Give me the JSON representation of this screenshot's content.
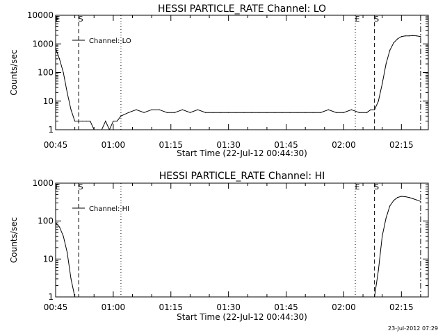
{
  "footer_stamp": "23-Jul-2012 07:29",
  "chart_data": [
    {
      "type": "line",
      "title": "HESSI PARTICLE_RATE Channel: LO",
      "xlabel": "Start Time (22-Jul-12 00:44:30)",
      "ylabel": "Counts/sec",
      "xlim": [
        "00:45",
        "02:22"
      ],
      "ylim": [
        1,
        10000
      ],
      "yscale": "log",
      "x_ticks": [
        "00:45",
        "01:00",
        "01:15",
        "01:30",
        "01:45",
        "02:00",
        "02:15"
      ],
      "y_ticks": [
        "1",
        "10",
        "100",
        "1000",
        "10000"
      ],
      "legend": {
        "label": "Channel: LO",
        "placement": "top-left"
      },
      "markers": [
        {
          "time": "00:45",
          "style": "dotted",
          "label": "E"
        },
        {
          "time": "00:51",
          "style": "dashed",
          "label": "S"
        },
        {
          "time": "01:02",
          "style": "dotted",
          "label": ""
        },
        {
          "time": "02:03",
          "style": "dotted",
          "label": "E"
        },
        {
          "time": "02:08",
          "style": "dashed",
          "label": "S"
        },
        {
          "time": "02:20",
          "style": "dashdot",
          "label": ""
        }
      ],
      "series": [
        {
          "name": "Channel: LO",
          "x": [
            "00:45",
            "00:46",
            "00:47",
            "00:48",
            "00:49",
            "00:50",
            "00:51",
            "00:52",
            "00:53",
            "00:54",
            "00:55",
            "00:56",
            "00:57",
            "00:58",
            "00:59",
            "01:00",
            "01:01",
            "01:02",
            "01:04",
            "01:06",
            "01:08",
            "01:10",
            "01:12",
            "01:14",
            "01:16",
            "01:18",
            "01:20",
            "01:22",
            "01:24",
            "01:26",
            "01:28",
            "01:30",
            "01:32",
            "01:34",
            "01:36",
            "01:38",
            "01:40",
            "01:42",
            "01:44",
            "01:46",
            "01:48",
            "01:50",
            "01:52",
            "01:54",
            "01:56",
            "01:58",
            "02:00",
            "02:02",
            "02:04",
            "02:06",
            "02:07",
            "02:08",
            "02:09",
            "02:10",
            "02:11",
            "02:12",
            "02:13",
            "02:14",
            "02:15",
            "02:16",
            "02:17",
            "02:18",
            "02:19",
            "02:20"
          ],
          "values": [
            700,
            300,
            100,
            20,
            5,
            2,
            2,
            2,
            2,
            2,
            1,
            1,
            1,
            2,
            1,
            2,
            2,
            3,
            4,
            5,
            4,
            5,
            5,
            4,
            4,
            5,
            4,
            5,
            4,
            4,
            4,
            4,
            4,
            4,
            4,
            4,
            4,
            4,
            4,
            4,
            4,
            4,
            4,
            4,
            5,
            4,
            4,
            5,
            4,
            4,
            5,
            5,
            10,
            40,
            200,
            600,
            1100,
            1500,
            1800,
            1900,
            1900,
            1950,
            1900,
            1800
          ]
        }
      ]
    },
    {
      "type": "line",
      "title": "HESSI PARTICLE_RATE Channel: HI",
      "xlabel": "Start Time (22-Jul-12 00:44:30)",
      "ylabel": "Counts/sec",
      "xlim": [
        "00:45",
        "02:22"
      ],
      "ylim": [
        1,
        1000
      ],
      "yscale": "log",
      "x_ticks": [
        "00:45",
        "01:00",
        "01:15",
        "01:30",
        "01:45",
        "02:00",
        "02:15"
      ],
      "y_ticks": [
        "1",
        "10",
        "100",
        "1000"
      ],
      "legend": {
        "label": "Channel: HI",
        "placement": "top-left"
      },
      "markers": [
        {
          "time": "00:45",
          "style": "dotted",
          "label": "E"
        },
        {
          "time": "00:51",
          "style": "dashed",
          "label": "S"
        },
        {
          "time": "01:02",
          "style": "dotted",
          "label": ""
        },
        {
          "time": "02:03",
          "style": "dotted",
          "label": "E"
        },
        {
          "time": "02:08",
          "style": "dashed",
          "label": "S"
        },
        {
          "time": "02:20",
          "style": "dashdot",
          "label": ""
        }
      ],
      "series": [
        {
          "name": "Channel: HI",
          "x": [
            "00:45",
            "00:46",
            "00:47",
            "00:48",
            "00:49",
            "00:50",
            "00:51",
            "00:52",
            "02:08",
            "02:09",
            "02:10",
            "02:11",
            "02:12",
            "02:13",
            "02:14",
            "02:15",
            "02:16",
            "02:17",
            "02:18",
            "02:19",
            "02:20"
          ],
          "values": [
            90,
            70,
            40,
            15,
            3,
            1,
            null,
            null,
            1,
            5,
            40,
            120,
            250,
            350,
            420,
            450,
            440,
            420,
            390,
            360,
            330
          ]
        }
      ]
    }
  ]
}
